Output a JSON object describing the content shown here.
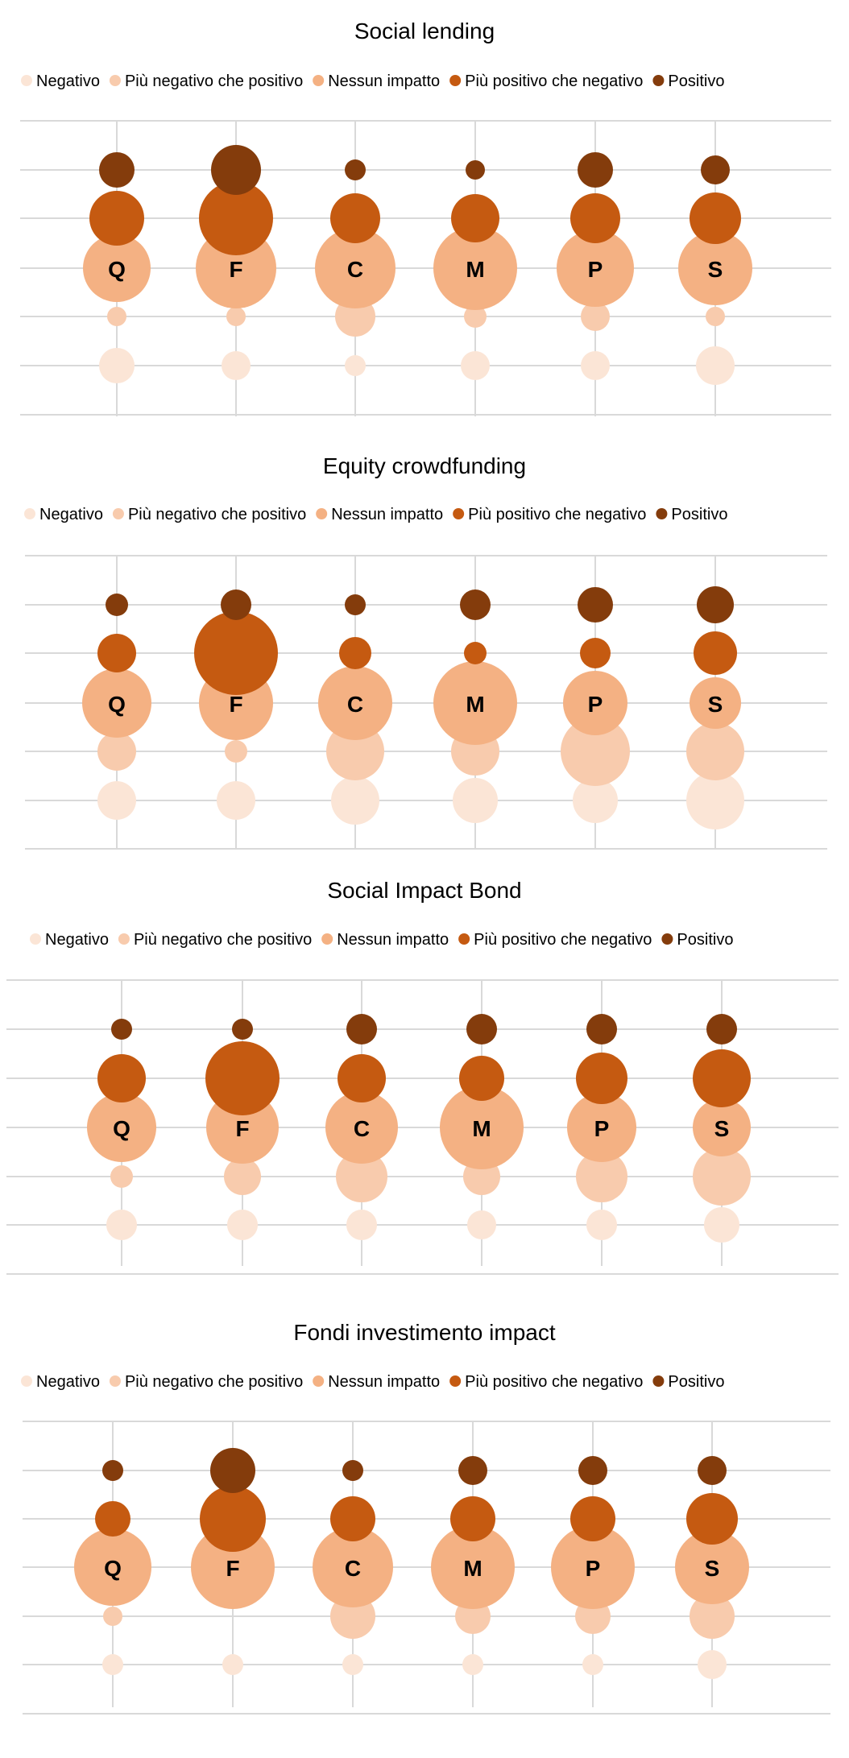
{
  "colors": {
    "Negativo": "#FBE5D6",
    "Più negativo che positivo": "#F8CBAD",
    "Nessun impatto": "#F4B183",
    "Più positivo che negativo": "#C55A11",
    "Positivo": "#843C0C",
    "gridline": "#D9D9D9",
    "text": "#000000"
  },
  "chart_data": [
    {
      "type": "bubble",
      "title": "Social lending",
      "legend_position": "top",
      "grid": true,
      "categories": [
        "Q",
        "F",
        "C",
        "M",
        "P",
        "S"
      ],
      "series": [
        {
          "name": "Negativo",
          "sizes": [
            22,
            18,
            13,
            18,
            18,
            24
          ]
        },
        {
          "name": "Più negativo che positivo",
          "sizes": [
            12,
            12,
            25,
            14,
            18,
            12
          ]
        },
        {
          "name": "Nessun impatto",
          "sizes": [
            42,
            50,
            50,
            52,
            48,
            46
          ]
        },
        {
          "name": "Più positivo che negativo",
          "sizes": [
            34,
            46,
            31,
            30,
            31,
            32
          ]
        },
        {
          "name": "Positivo",
          "sizes": [
            22,
            31,
            13,
            12,
            22,
            18
          ]
        }
      ]
    },
    {
      "type": "bubble",
      "title": "Equity crowdfunding",
      "legend_position": "top",
      "grid": true,
      "categories": [
        "Q",
        "F",
        "C",
        "M",
        "P",
        "S"
      ],
      "series": [
        {
          "name": "Negativo",
          "sizes": [
            24,
            24,
            30,
            28,
            28,
            36
          ]
        },
        {
          "name": "Più negativo che positivo",
          "sizes": [
            24,
            14,
            36,
            30,
            43,
            36
          ]
        },
        {
          "name": "Nessun impatto",
          "sizes": [
            43,
            46,
            46,
            52,
            40,
            32
          ]
        },
        {
          "name": "Più positivo che negativo",
          "sizes": [
            24,
            52,
            20,
            14,
            19,
            27
          ]
        },
        {
          "name": "Positivo",
          "sizes": [
            14,
            19,
            13,
            19,
            22,
            23
          ]
        }
      ]
    },
    {
      "type": "bubble",
      "title": "Social Impact Bond",
      "legend_position": "top",
      "grid": true,
      "categories": [
        "Q",
        "F",
        "C",
        "M",
        "P",
        "S"
      ],
      "series": [
        {
          "name": "Negativo",
          "sizes": [
            19,
            19,
            19,
            18,
            19,
            22
          ]
        },
        {
          "name": "Più negativo che positivo",
          "sizes": [
            14,
            23,
            32,
            23,
            32,
            36
          ]
        },
        {
          "name": "Nessun impatto",
          "sizes": [
            43,
            45,
            45,
            52,
            43,
            36
          ]
        },
        {
          "name": "Più positivo che negativo",
          "sizes": [
            30,
            46,
            30,
            28,
            32,
            36
          ]
        },
        {
          "name": "Positivo",
          "sizes": [
            13,
            13,
            19,
            19,
            19,
            19
          ]
        }
      ]
    },
    {
      "type": "bubble",
      "title": "Fondi investimento impact",
      "legend_position": "top",
      "grid": true,
      "categories": [
        "Q",
        "F",
        "C",
        "M",
        "P",
        "S"
      ],
      "series": [
        {
          "name": "Negativo",
          "sizes": [
            13,
            13,
            13,
            13,
            13,
            18
          ]
        },
        {
          "name": "Più negativo che positivo",
          "sizes": [
            12,
            0,
            28,
            22,
            22,
            28
          ]
        },
        {
          "name": "Nessun impatto",
          "sizes": [
            48,
            52,
            50,
            52,
            52,
            46
          ]
        },
        {
          "name": "Più positivo che negativo",
          "sizes": [
            22,
            41,
            28,
            28,
            28,
            32
          ]
        },
        {
          "name": "Positivo",
          "sizes": [
            13,
            28,
            13,
            18,
            18,
            18
          ]
        }
      ]
    }
  ]
}
